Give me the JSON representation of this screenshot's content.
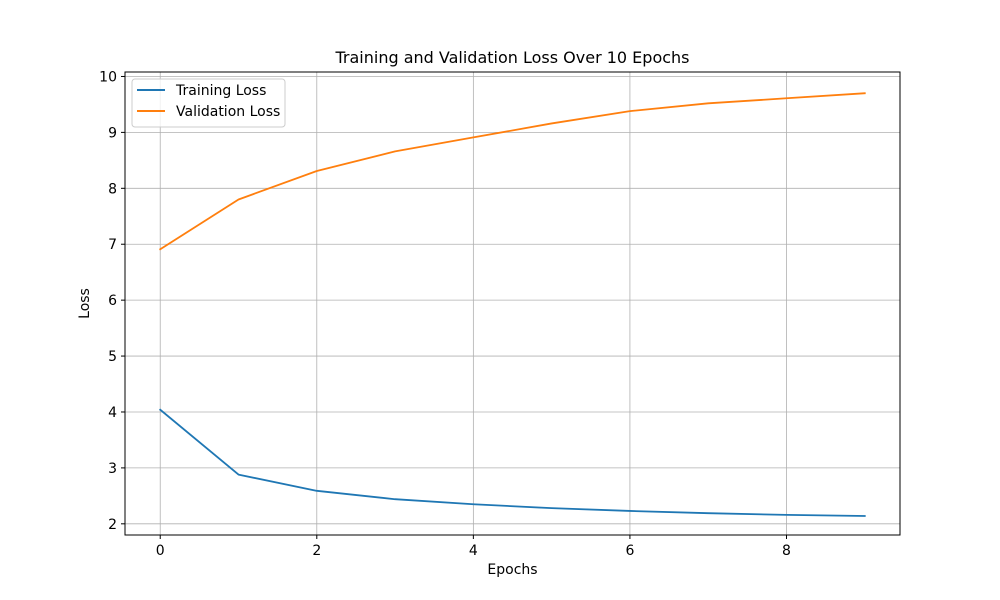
{
  "chart_data": {
    "type": "line",
    "title": "Training and Validation Loss Over 10 Epochs",
    "xlabel": "Epochs",
    "ylabel": "Loss",
    "x": [
      0,
      1,
      2,
      3,
      4,
      5,
      6,
      7,
      8,
      9
    ],
    "xlim": [
      -0.45,
      9.45
    ],
    "ylim": [
      1.8,
      10.08
    ],
    "xticks": [
      0,
      2,
      4,
      6,
      8
    ],
    "yticks": [
      2,
      3,
      4,
      5,
      6,
      7,
      8,
      9,
      10
    ],
    "grid": true,
    "legend_position": "top-left",
    "series": [
      {
        "name": "Training Loss",
        "color": "#1f77b4",
        "values": [
          4.04,
          2.88,
          2.59,
          2.44,
          2.35,
          2.28,
          2.23,
          2.19,
          2.16,
          2.14
        ]
      },
      {
        "name": "Validation Loss",
        "color": "#ff7f0e",
        "values": [
          6.91,
          7.8,
          8.31,
          8.66,
          8.91,
          9.16,
          9.38,
          9.52,
          9.61,
          9.7
        ]
      }
    ]
  }
}
